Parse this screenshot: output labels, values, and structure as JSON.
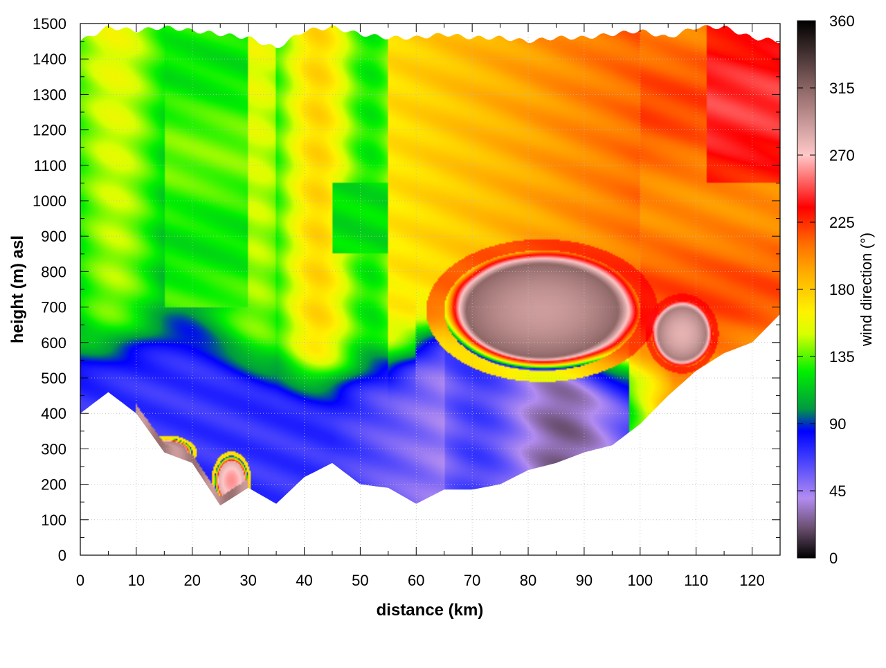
{
  "chart_data": {
    "type": "heatmap",
    "title": "",
    "xlabel": "distance (km)",
    "ylabel": "height (m) asl",
    "colorbar_label": "wind direction (°)",
    "xlim": [
      0,
      125
    ],
    "ylim": [
      0,
      1500
    ],
    "clim": [
      0,
      360
    ],
    "x_ticks": [
      "0",
      "10",
      "20",
      "30",
      "40",
      "50",
      "60",
      "70",
      "80",
      "90",
      "100",
      "110",
      "120"
    ],
    "y_ticks": [
      "0",
      "100",
      "200",
      "300",
      "400",
      "500",
      "600",
      "700",
      "800",
      "900",
      "1000",
      "1100",
      "1200",
      "1300",
      "1400",
      "1500"
    ],
    "colorbar_ticks": [
      "0",
      "45",
      "90",
      "135",
      "180",
      "225",
      "270",
      "315",
      "360"
    ],
    "grid": true,
    "colormap": [
      {
        "value": 0,
        "color": "#000000"
      },
      {
        "value": 20,
        "color": "#6a4e6e"
      },
      {
        "value": 40,
        "color": "#b28cf0"
      },
      {
        "value": 70,
        "color": "#3333ff"
      },
      {
        "value": 85,
        "color": "#0000ff"
      },
      {
        "value": 100,
        "color": "#009a40"
      },
      {
        "value": 125,
        "color": "#00f000"
      },
      {
        "value": 150,
        "color": "#d8ff00"
      },
      {
        "value": 165,
        "color": "#fff200"
      },
      {
        "value": 190,
        "color": "#ffb000"
      },
      {
        "value": 210,
        "color": "#ff7000"
      },
      {
        "value": 235,
        "color": "#ff0000"
      },
      {
        "value": 270,
        "color": "#ffc8c8"
      },
      {
        "value": 310,
        "color": "#9a7070"
      },
      {
        "value": 360,
        "color": "#000000"
      }
    ],
    "distance_km": [
      0,
      5,
      10,
      15,
      20,
      25,
      30,
      35,
      40,
      45,
      50,
      55,
      60,
      65,
      70,
      75,
      80,
      85,
      90,
      95,
      100,
      105,
      110,
      115,
      120,
      125
    ],
    "terrain_height_m": [
      400,
      460,
      400,
      290,
      260,
      140,
      190,
      145,
      220,
      260,
      200,
      190,
      145,
      185,
      185,
      200,
      240,
      260,
      290,
      310,
      370,
      450,
      520,
      570,
      600,
      680
    ],
    "data_top_height_m": [
      1450,
      1490,
      1480,
      1490,
      1480,
      1470,
      1460,
      1430,
      1480,
      1490,
      1470,
      1460,
      1460,
      1470,
      1460,
      1460,
      1450,
      1460,
      1460,
      1470,
      1480,
      1460,
      1490,
      1490,
      1460,
      1450
    ],
    "wind_regions": [
      {
        "x_range_km": [
          65,
          100
        ],
        "height_range_m": [
          520,
          860
        ],
        "direction_deg": 330
      },
      {
        "x_range_km": [
          102,
          113
        ],
        "height_range_m": [
          530,
          720
        ],
        "direction_deg": 320
      },
      {
        "x_range_km": [
          11,
          20
        ],
        "height_range_m": [
          250,
          330
        ],
        "direction_deg": 320
      },
      {
        "x_range_km": [
          24,
          30
        ],
        "height_range_m": [
          140,
          280
        ],
        "direction_deg": 300
      }
    ]
  }
}
